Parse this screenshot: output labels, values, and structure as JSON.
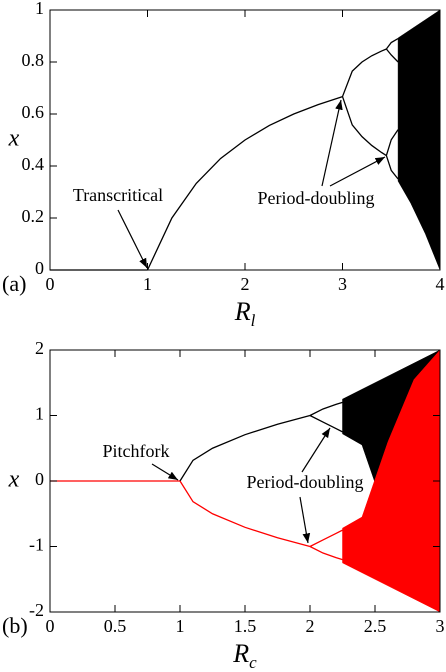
{
  "chart_data": [
    {
      "type": "line",
      "panel_label": "(a)",
      "xlabel": "R",
      "xlabel_subscript": "l",
      "ylabel": "x",
      "xlim": [
        0,
        4
      ],
      "ylim": [
        0,
        1
      ],
      "xticks": [
        0,
        1,
        2,
        3,
        4
      ],
      "yticks": [
        0,
        0.2,
        0.4,
        0.6,
        0.8,
        1
      ],
      "annotations": [
        "Transcritical",
        "Period-doubling"
      ],
      "series": [
        {
          "color": "#000000",
          "x": [
            0,
            1
          ],
          "values": [
            0,
            0
          ]
        },
        {
          "color": "#000000",
          "x": [
            1,
            1.25,
            1.5,
            1.75,
            2,
            2.25,
            2.5,
            2.75,
            3
          ],
          "values": [
            0,
            0.2,
            0.333,
            0.429,
            0.5,
            0.556,
            0.6,
            0.636,
            0.667
          ]
        },
        {
          "color": "#000000",
          "x": [
            3,
            3.1,
            3.2,
            3.3,
            3.4,
            3.45
          ],
          "values": [
            0.667,
            0.765,
            0.8,
            0.824,
            0.842,
            0.85
          ]
        },
        {
          "color": "#000000",
          "x": [
            3,
            3.1,
            3.2,
            3.3,
            3.4,
            3.45
          ],
          "values": [
            0.667,
            0.558,
            0.513,
            0.479,
            0.452,
            0.44
          ]
        },
        {
          "color": "#000000",
          "x": [
            3.45,
            3.5,
            3.57
          ],
          "values": [
            0.85,
            0.875,
            0.89
          ]
        },
        {
          "color": "#000000",
          "x": [
            3.45,
            3.5,
            3.57
          ],
          "values": [
            0.85,
            0.827,
            0.8
          ]
        },
        {
          "color": "#000000",
          "x": [
            3.45,
            3.5,
            3.57
          ],
          "values": [
            0.44,
            0.501,
            0.54
          ]
        },
        {
          "color": "#000000",
          "x": [
            3.45,
            3.5,
            3.57
          ],
          "values": [
            0.44,
            0.383,
            0.35
          ]
        }
      ],
      "bands": [
        {
          "color": "#000000",
          "x": [
            3.57,
            3.7,
            3.85,
            4
          ],
          "upper": [
            0.8925,
            0.925,
            0.9625,
            1
          ],
          "lower": [
            0.342,
            0.257,
            0.139,
            0
          ]
        }
      ]
    },
    {
      "type": "line",
      "panel_label": "(b)",
      "xlabel": "R",
      "xlabel_subscript": "c",
      "ylabel": "x",
      "xlim": [
        0,
        3
      ],
      "ylim": [
        -2,
        2
      ],
      "xticks": [
        0,
        0.5,
        1,
        1.5,
        2,
        2.5,
        3
      ],
      "yticks": [
        -2,
        -1,
        0,
        1,
        2
      ],
      "annotations": [
        "Pitchfork",
        "Period-doubling"
      ],
      "series": [
        {
          "color": "#ff0000",
          "x": [
            0,
            1
          ],
          "values": [
            0,
            0
          ]
        },
        {
          "color": "#000000",
          "x": [
            1,
            1.1,
            1.25,
            1.5,
            1.75,
            2
          ],
          "values": [
            0,
            0.316,
            0.5,
            0.707,
            0.866,
            1
          ]
        },
        {
          "color": "#ff0000",
          "x": [
            1,
            1.1,
            1.25,
            1.5,
            1.75,
            2
          ],
          "values": [
            0,
            -0.316,
            -0.5,
            -0.707,
            -0.866,
            -1
          ]
        },
        {
          "color": "#000000",
          "x": [
            2,
            2.1,
            2.2,
            2.25
          ],
          "values": [
            1,
            1.1,
            1.17,
            1.2
          ]
        },
        {
          "color": "#000000",
          "x": [
            2,
            2.1,
            2.2,
            2.25
          ],
          "values": [
            1,
            0.9,
            0.8,
            0.75
          ]
        },
        {
          "color": "#ff0000",
          "x": [
            2,
            2.1,
            2.2,
            2.25
          ],
          "values": [
            -1,
            -1.1,
            -1.17,
            -1.2
          ]
        },
        {
          "color": "#ff0000",
          "x": [
            2,
            2.1,
            2.2,
            2.25
          ],
          "values": [
            -1,
            -0.9,
            -0.8,
            -0.75
          ]
        }
      ],
      "bands": [
        {
          "color": "#000000",
          "x": [
            2.25,
            2.4,
            2.6,
            2.8,
            3
          ],
          "upper": [
            1.25,
            1.4,
            1.6,
            1.8,
            2
          ],
          "lower": [
            0.72,
            0.55,
            -0.6,
            -1.55,
            -2
          ]
        },
        {
          "color": "#ff0000",
          "x": [
            2.25,
            2.4,
            2.6,
            2.8,
            3
          ],
          "upper": [
            -0.72,
            -0.55,
            0.6,
            1.55,
            2
          ],
          "lower": [
            -1.25,
            -1.4,
            -1.6,
            -1.8,
            -2
          ]
        }
      ]
    }
  ]
}
